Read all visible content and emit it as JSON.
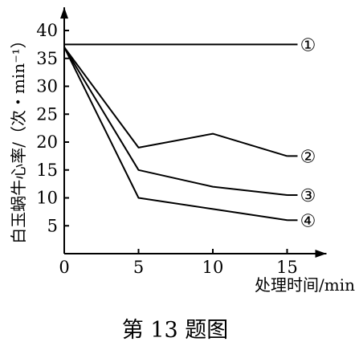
{
  "chart_data": {
    "type": "line",
    "xlabel": "处理时间/min",
    "ylabel": "白玉蜗牛心率/（次・min⁻¹）",
    "x_ticks": [
      0,
      5,
      10,
      15
    ],
    "y_ticks": [
      5,
      10,
      15,
      20,
      25,
      30,
      35,
      40
    ],
    "xlim": [
      0,
      17
    ],
    "ylim": [
      0,
      43
    ],
    "grid": false,
    "series": [
      {
        "name": "①",
        "x": [
          0,
          15
        ],
        "y": [
          37.5,
          37.5
        ]
      },
      {
        "name": "②",
        "x": [
          0,
          5,
          10,
          15
        ],
        "y": [
          37,
          19,
          21.5,
          17.5
        ]
      },
      {
        "name": "③",
        "x": [
          0,
          5,
          10,
          15
        ],
        "y": [
          37,
          15,
          12,
          10.5
        ]
      },
      {
        "name": "④",
        "x": [
          0,
          5,
          10,
          15
        ],
        "y": [
          37,
          10,
          8,
          6
        ]
      }
    ],
    "caption": "第 13 题图"
  }
}
